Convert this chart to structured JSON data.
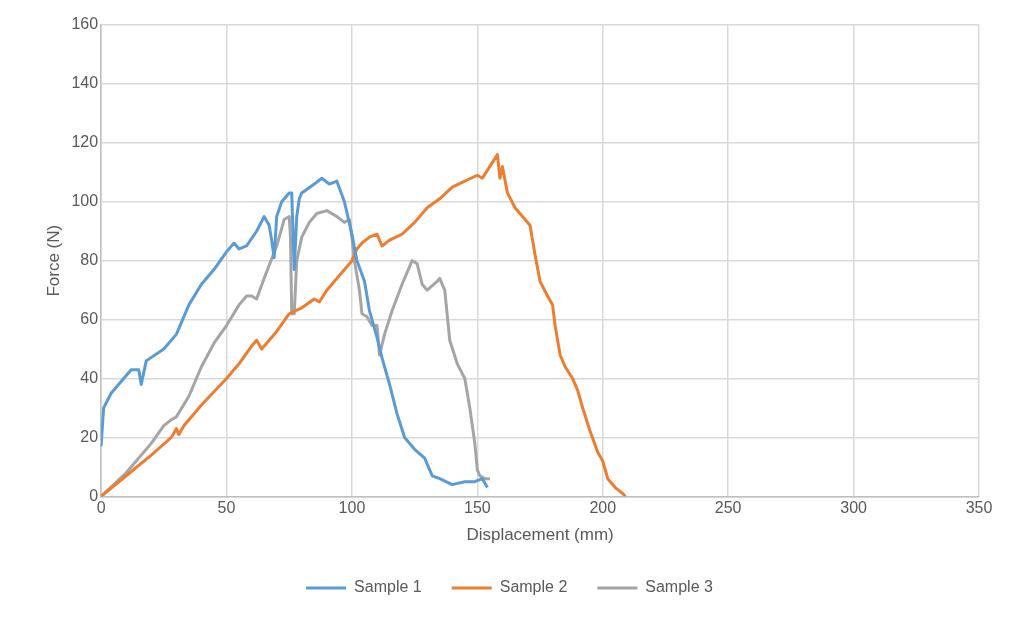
{
  "chart_data": {
    "type": "line",
    "xlabel": "Displacement (mm)",
    "ylabel": "Force (N)",
    "xlim": [
      0,
      350
    ],
    "xticks": [
      0,
      50,
      100,
      150,
      200,
      250,
      300,
      350
    ],
    "ylim": [
      0,
      160
    ],
    "yticks": [
      0,
      20,
      40,
      60,
      80,
      100,
      120,
      140,
      160
    ],
    "grid": true,
    "legend": "bottom",
    "marker": "none",
    "line_style": "solid",
    "series": [
      {
        "name": "Sample 1",
        "color": "#5b9bd5",
        "x": [
          0,
          1,
          4,
          8,
          12,
          15,
          16,
          17,
          18,
          25,
          30,
          35,
          40,
          45,
          50,
          53,
          55,
          58,
          62,
          65,
          67,
          68,
          69,
          70,
          72,
          75,
          76,
          77,
          78,
          79,
          80,
          85,
          88,
          91,
          94,
          97,
          100,
          102,
          105,
          107,
          110,
          112,
          115,
          118,
          121,
          125,
          129,
          132,
          135,
          140,
          145,
          149,
          152,
          154
        ],
        "values": [
          17,
          30,
          35,
          39,
          43,
          43,
          38,
          42,
          46,
          50,
          55,
          65,
          72,
          77,
          83,
          86,
          84,
          85,
          90,
          95,
          92,
          87,
          81,
          95,
          100,
          103,
          103,
          77,
          95,
          101,
          103,
          106,
          108,
          106,
          107,
          100,
          89,
          80,
          73,
          63,
          54,
          47,
          38,
          28,
          20,
          16,
          13,
          7,
          6,
          4,
          5,
          5,
          6,
          3
        ]
      },
      {
        "name": "Sample 2",
        "color": "#ed7d31",
        "x": [
          0,
          10,
          20,
          28,
          30,
          31,
          33,
          40,
          50,
          55,
          60,
          62,
          64,
          66,
          70,
          75,
          80,
          85,
          87,
          90,
          95,
          100,
          102,
          104,
          107,
          110,
          112,
          115,
          120,
          125,
          130,
          135,
          140,
          145,
          150,
          152,
          155,
          158,
          159,
          160,
          162,
          165,
          168,
          171,
          173,
          175,
          178,
          180,
          181,
          183,
          185,
          188,
          190,
          192,
          195,
          198,
          200,
          202,
          205,
          208,
          209
        ],
        "values": [
          0,
          7,
          14,
          20,
          23,
          21,
          24,
          31,
          40,
          45,
          51,
          53,
          50,
          52,
          56,
          62,
          64,
          67,
          66,
          70,
          75,
          80,
          84,
          86,
          88,
          89,
          85,
          87,
          89,
          93,
          98,
          101,
          105,
          107,
          109,
          108,
          112,
          116,
          108,
          112,
          103,
          98,
          95,
          92,
          82,
          73,
          68,
          65,
          58,
          48,
          44,
          40,
          36,
          30,
          22,
          15,
          12,
          6,
          3,
          1,
          0
        ]
      },
      {
        "name": "Sample 3",
        "color": "#a5a5a5",
        "x": [
          0,
          10,
          20,
          25,
          28,
          30,
          35,
          40,
          45,
          50,
          55,
          58,
          60,
          62,
          65,
          70,
          72,
          73,
          75,
          75.5,
          76,
          77,
          78,
          80,
          83,
          86,
          90,
          94,
          97,
          99,
          100,
          101,
          103,
          104,
          106,
          108,
          110,
          111,
          113,
          116,
          120,
          124,
          126,
          128,
          130,
          134,
          135,
          137,
          139,
          142,
          145,
          147,
          149,
          150,
          151,
          153,
          155
        ],
        "values": [
          0,
          8,
          18,
          24,
          26,
          27,
          34,
          44,
          52,
          58,
          65,
          68,
          68,
          67,
          74,
          85,
          91,
          94,
          95,
          88,
          62,
          62,
          80,
          88,
          93,
          96,
          97,
          95,
          93,
          94,
          88,
          80,
          70,
          62,
          61,
          58,
          58,
          48,
          55,
          63,
          72,
          80,
          79,
          72,
          70,
          73,
          74,
          70,
          53,
          45,
          40,
          30,
          18,
          9,
          7,
          6,
          6
        ]
      }
    ]
  }
}
